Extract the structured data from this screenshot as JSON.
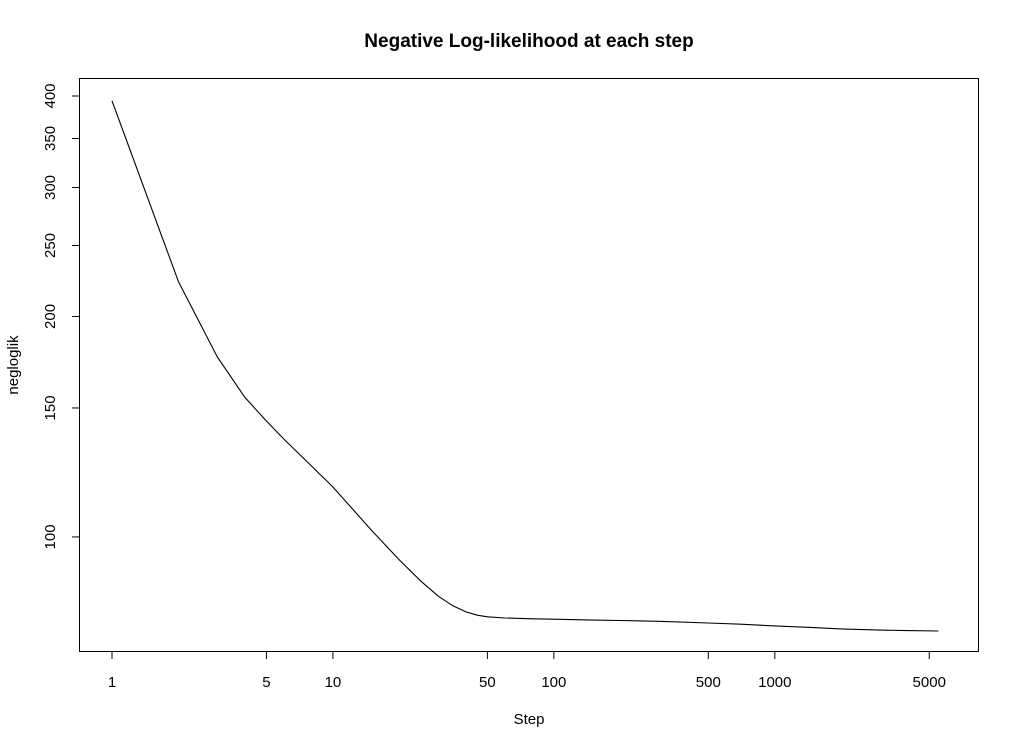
{
  "chart_data": {
    "type": "line",
    "title": "Negative Log-likelihood at each step",
    "xlabel": "Step",
    "ylabel": "negloglik",
    "x_scale": "log",
    "y_scale": "log",
    "xlim": [
      1,
      5500
    ],
    "ylim": [
      73,
      405
    ],
    "grid": false,
    "legend": "none",
    "line_color": "#000000",
    "x_ticks": [
      {
        "value": 1,
        "label": "1"
      },
      {
        "value": 5,
        "label": "5"
      },
      {
        "value": 10,
        "label": "10"
      },
      {
        "value": 50,
        "label": "50"
      },
      {
        "value": 100,
        "label": "100"
      },
      {
        "value": 500,
        "label": "500"
      },
      {
        "value": 1000,
        "label": "1000"
      },
      {
        "value": 5000,
        "label": "5000"
      }
    ],
    "y_ticks": [
      {
        "value": 100,
        "label": "100"
      },
      {
        "value": 150,
        "label": "150"
      },
      {
        "value": 200,
        "label": "200"
      },
      {
        "value": 250,
        "label": "250"
      },
      {
        "value": 300,
        "label": "300"
      },
      {
        "value": 350,
        "label": "350"
      },
      {
        "value": 400,
        "label": "400"
      }
    ],
    "series": [
      {
        "x": [
          1,
          2,
          3,
          4,
          5,
          6,
          8,
          10,
          15,
          20,
          25,
          30,
          35,
          40,
          45,
          50,
          60,
          80,
          100,
          150,
          200,
          300,
          500,
          700,
          1000,
          1500,
          2000,
          3000,
          4000,
          5500
        ],
        "y": [
          394,
          223,
          176,
          155,
          144,
          136,
          125,
          117,
          102,
          93,
          87,
          83,
          80.5,
          79,
          78.2,
          77.8,
          77.5,
          77.3,
          77.2,
          77.0,
          76.9,
          76.7,
          76.3,
          76.0,
          75.6,
          75.2,
          74.9,
          74.6,
          74.5,
          74.4
        ]
      }
    ]
  }
}
